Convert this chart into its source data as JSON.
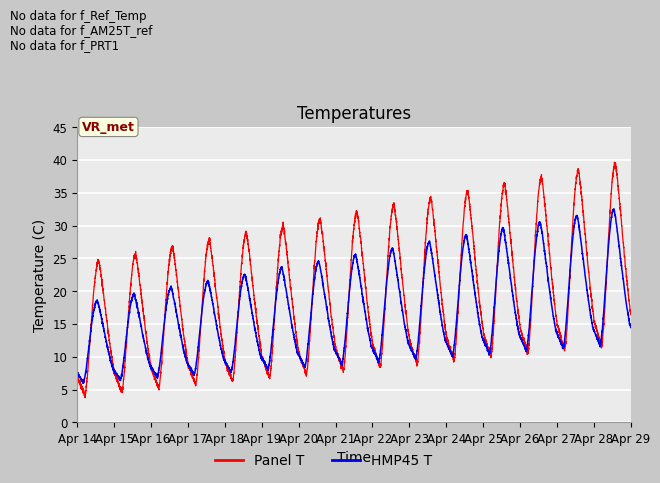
{
  "title": "Temperatures",
  "xlabel": "Time",
  "ylabel": "Temperature (C)",
  "ylim": [
    0,
    45
  ],
  "xlim": [
    0,
    15
  ],
  "x_tick_labels": [
    "Apr 14",
    "Apr 15",
    "Apr 16",
    "Apr 17",
    "Apr 18",
    "Apr 19",
    "Apr 20",
    "Apr 21",
    "Apr 22",
    "Apr 23",
    "Apr 24",
    "Apr 25",
    "Apr 26",
    "Apr 27",
    "Apr 28",
    "Apr 29"
  ],
  "panel_color": "#FF0000",
  "hmp45_color": "#0000EE",
  "annotations": [
    "No data for f_Ref_Temp",
    "No data for f_AM25T_ref",
    "No data for f_PRT1"
  ],
  "vr_met_label": "VR_met",
  "legend_panel": "Panel T",
  "legend_hmp45": "HMP45 T",
  "plot_bg": "#EBEBEB",
  "fig_bg": "#C8C8C8",
  "title_fontsize": 12,
  "axis_fontsize": 10,
  "tick_fontsize": 8.5
}
